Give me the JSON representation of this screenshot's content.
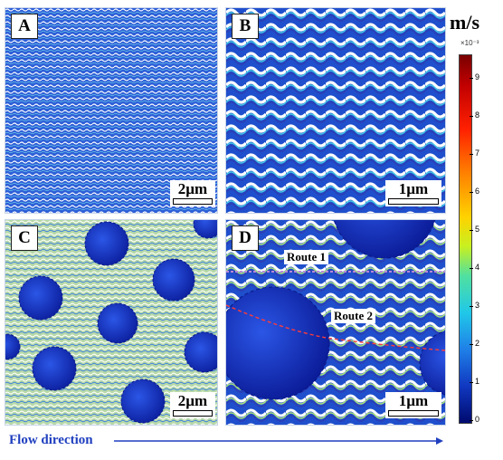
{
  "panels": [
    {
      "label": "A",
      "scale": "2µm"
    },
    {
      "label": "B",
      "scale": "1µm"
    },
    {
      "label": "C",
      "scale": "2µm"
    },
    {
      "label": "D",
      "scale": "1µm"
    }
  ],
  "routes": {
    "route1": "Route 1",
    "route2": "Route 2"
  },
  "colorbar": {
    "unit": "m/s",
    "exponent": "×10⁻³",
    "ticks": [
      "9",
      "8",
      "7",
      "6",
      "5",
      "4",
      "3",
      "2",
      "1",
      "0"
    ]
  },
  "flow_direction": "Flow direction"
}
